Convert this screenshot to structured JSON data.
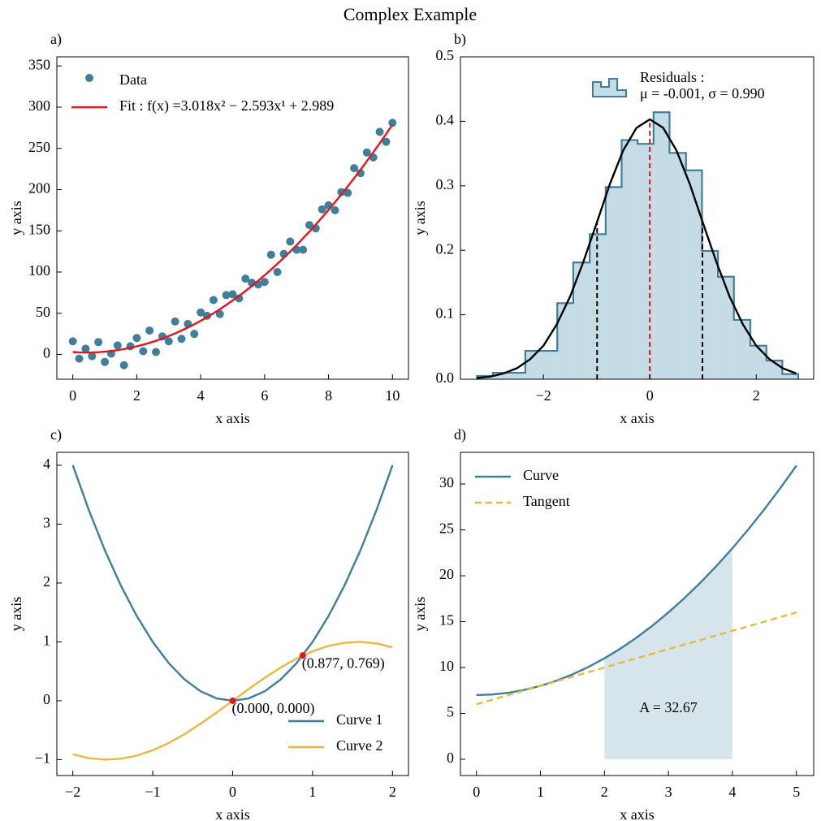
{
  "title": "Complex Example",
  "chart_data": [
    {
      "label": "a)",
      "type": "scatter",
      "xlabel": "x axis",
      "ylabel": "y axis",
      "xlim": [
        -0.5,
        10.5
      ],
      "ylim": [
        -30,
        361
      ],
      "xticks": [
        0,
        2,
        4,
        6,
        8,
        10
      ],
      "yticks": [
        0,
        50,
        100,
        150,
        200,
        250,
        300,
        350
      ],
      "legend": "upper left",
      "x": [
        0,
        0.2,
        0.4,
        0.6,
        0.8,
        1,
        1.2,
        1.4,
        1.6,
        1.8,
        2,
        2.2,
        2.4,
        2.6,
        2.8,
        3,
        3.2,
        3.4,
        3.6,
        3.8,
        4,
        4.2,
        4.4,
        4.6,
        4.8,
        5,
        5.2,
        5.4,
        5.6,
        5.8,
        6,
        6.2,
        6.4,
        6.6,
        6.8,
        7,
        7.2,
        7.4,
        7.6,
        7.8,
        8,
        8.2,
        8.4,
        8.6,
        8.8,
        9,
        9.2,
        9.4,
        9.6,
        9.8,
        10
      ],
      "series": [
        {
          "name": "Data",
          "kind": "scatter",
          "color": "#3f7f9b",
          "values": [
            16,
            -5,
            7,
            -2,
            15,
            -9,
            1,
            11,
            -13,
            10,
            20,
            4,
            29,
            3,
            22,
            16,
            40,
            19,
            37,
            25,
            51,
            47,
            66,
            49,
            72,
            73,
            68,
            92,
            87,
            85,
            88,
            121,
            100,
            122,
            137,
            127,
            127,
            157,
            153,
            176,
            181,
            175,
            197,
            196,
            226,
            220,
            245,
            239,
            270,
            258,
            281
          ]
        },
        {
          "name": "Fit : f(x) =3.018x² − 2.593x¹ + 2.989",
          "kind": "line",
          "color": "#e8141c",
          "values": [
            3.0,
            2.6,
            2.4,
            2.5,
            2.8,
            3.4,
            4.2,
            5.3,
            6.6,
            8.1,
            9.9,
            11.9,
            14.2,
            16.6,
            19.4,
            22.4,
            25.6,
            29.1,
            32.8,
            36.7,
            40.9,
            45.3,
            50.0,
            54.9,
            60.1,
            65.5,
            71.1,
            77.0,
            83.1,
            89.5,
            96.1,
            102.9,
            110.0,
            117.3,
            124.9,
            132.7,
            140.8,
            149.1,
            157.6,
            166.4,
            175.4,
            184.7,
            194.2,
            203.9,
            213.9,
            224.1,
            234.6,
            245.3,
            256.2,
            267.4,
            278.9
          ]
        }
      ]
    },
    {
      "label": "b)",
      "type": "histogram",
      "xlabel": "x axis",
      "ylabel": "y axis",
      "xlim": [
        -3.56,
        3.08
      ],
      "ylim": [
        0,
        0.5
      ],
      "xticks": [
        {
          "value": -2,
          "label": "−2"
        },
        0,
        2
      ],
      "yticks": [
        {
          "value": 0,
          "label": "0.0"
        },
        0.1,
        0.2,
        0.3,
        0.4,
        0.5
      ],
      "legend": "upper right",
      "hist": {
        "name": "Residuals :",
        "stats": "μ = -0.001, σ = 0.990",
        "color": "#3f7f9b",
        "fill": "#c5dbe5",
        "bins": [
          -3.25,
          -2.95,
          -2.65,
          -2.34,
          -2.04,
          -1.74,
          -1.44,
          -1.13,
          -0.83,
          -0.53,
          -0.23,
          0.07,
          0.37,
          0.68,
          0.98,
          1.28,
          1.58,
          1.89,
          2.19,
          2.49,
          2.79
        ],
        "counts": [
          0.005,
          0.01,
          0.01,
          0.044,
          0.044,
          0.118,
          0.181,
          0.225,
          0.298,
          0.371,
          0.365,
          0.414,
          0.351,
          0.324,
          0.199,
          0.159,
          0.092,
          0.052,
          0.029,
          0.008
        ]
      },
      "series": [
        {
          "kind": "line",
          "color": "#000000",
          "x": [
            -3.25,
            -3,
            -2.75,
            -2.5,
            -2.25,
            -2,
            -1.75,
            -1.5,
            -1.25,
            -1,
            -0.75,
            -0.5,
            -0.25,
            0,
            0.25,
            0.5,
            0.75,
            1,
            1.25,
            1.5,
            1.75,
            2,
            2.25,
            2.5,
            2.75
          ],
          "values": [
            0.002,
            0.004,
            0.009,
            0.017,
            0.031,
            0.052,
            0.085,
            0.128,
            0.182,
            0.242,
            0.303,
            0.355,
            0.39,
            0.403,
            0.39,
            0.355,
            0.303,
            0.242,
            0.182,
            0.128,
            0.085,
            0.052,
            0.031,
            0.017,
            0.009
          ]
        }
      ],
      "vlines": [
        {
          "x": -0.991,
          "top": 0.242,
          "color": "#000000"
        },
        {
          "x": -0.001,
          "top": 0.403,
          "color": "#e8141c"
        },
        {
          "x": 0.989,
          "top": 0.242,
          "color": "#000000"
        }
      ]
    },
    {
      "label": "c)",
      "type": "line",
      "xlabel": "x axis",
      "ylabel": "y axis",
      "xlim": [
        -2.2,
        2.2
      ],
      "ylim": [
        -1.27,
        4.22
      ],
      "xticks": [
        {
          "value": -2,
          "label": "−2"
        },
        {
          "value": -1,
          "label": "−1"
        },
        0,
        1,
        2
      ],
      "yticks": [
        {
          "value": -1,
          "label": "−1"
        },
        0,
        1,
        2,
        3,
        4
      ],
      "legend": "lower right",
      "x": [
        -2,
        -1.8,
        -1.6,
        -1.4,
        -1.2,
        -1,
        -0.8,
        -0.6,
        -0.4,
        -0.2,
        0,
        0.2,
        0.4,
        0.6,
        0.8,
        1,
        1.2,
        1.4,
        1.6,
        1.8,
        2
      ],
      "series": [
        {
          "name": "Curve 1",
          "kind": "line",
          "color": "#3f7f9b",
          "values": [
            4,
            3.24,
            2.56,
            1.96,
            1.44,
            1,
            0.64,
            0.36,
            0.16,
            0.04,
            0,
            0.04,
            0.16,
            0.36,
            0.64,
            1,
            1.44,
            1.96,
            2.56,
            3.24,
            4
          ]
        },
        {
          "name": "Curve 2",
          "kind": "line",
          "color": "#ebb73d",
          "values": [
            -0.909,
            -0.974,
            -1.0,
            -0.985,
            -0.932,
            -0.841,
            -0.717,
            -0.565,
            -0.389,
            -0.199,
            0,
            0.199,
            0.389,
            0.565,
            0.717,
            0.841,
            0.932,
            0.985,
            1.0,
            0.974,
            0.909
          ]
        }
      ],
      "points": [
        {
          "x": 0,
          "y": 0,
          "label": "(0.000, 0.000)",
          "color": "#e8141c"
        },
        {
          "x": 0.877,
          "y": 0.769,
          "label": "(0.877, 0.769)",
          "color": "#e8141c"
        }
      ]
    },
    {
      "label": "d)",
      "type": "line",
      "xlabel": "x axis",
      "ylabel": "y axis",
      "xlim": [
        -0.25,
        5.27
      ],
      "ylim": [
        -1.77,
        33.45
      ],
      "xticks": [
        0,
        1,
        2,
        3,
        4,
        5
      ],
      "yticks": [
        0,
        5,
        10,
        15,
        20,
        25,
        30
      ],
      "legend": "upper left",
      "x": [
        0,
        0.25,
        0.5,
        0.75,
        1,
        1.25,
        1.5,
        1.75,
        2,
        2.25,
        2.5,
        2.75,
        3,
        3.25,
        3.5,
        3.75,
        4,
        4.25,
        4.5,
        4.75,
        5
      ],
      "fill": {
        "color": "#d6e5ec",
        "x": [
          2,
          2.5,
          3,
          3.5,
          4
        ],
        "values": [
          11,
          13.25,
          16,
          19.25,
          23
        ]
      },
      "series": [
        {
          "name": "Curve",
          "kind": "line",
          "color": "#3f7f9b",
          "values": [
            7,
            7.0625,
            7.25,
            7.5625,
            8,
            8.5625,
            9.25,
            10.0625,
            11,
            12.0625,
            13.25,
            14.5625,
            16,
            17.5625,
            19.25,
            21.0625,
            23,
            25.0625,
            27.25,
            29.5625,
            32
          ]
        },
        {
          "name": "Tangent",
          "kind": "line",
          "dashed": true,
          "color": "#ebb73d",
          "x": [
            0,
            5
          ],
          "values": [
            6,
            16
          ]
        }
      ],
      "annotation": {
        "text": "A = 32.67",
        "x": 3,
        "y": 5.5
      }
    }
  ]
}
